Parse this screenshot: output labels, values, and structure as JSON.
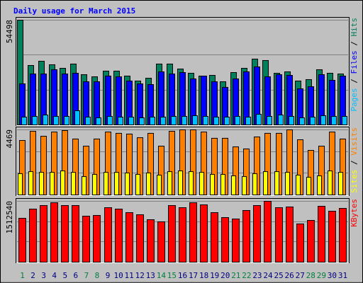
{
  "title": "Daily usage for March 2015",
  "categories": [
    "1",
    "2",
    "3",
    "4",
    "5",
    "6",
    "7",
    "8",
    "9",
    "10",
    "11",
    "12",
    "13",
    "14",
    "15",
    "16",
    "17",
    "18",
    "19",
    "20",
    "21",
    "22",
    "23",
    "24",
    "25",
    "26",
    "27",
    "28",
    "29",
    "30",
    "31"
  ],
  "category_colors": [
    "#008040",
    "#000080",
    "#000080",
    "#000080",
    "#000080",
    "#000080",
    "#008040",
    "#008040",
    "#000080",
    "#000080",
    "#000080",
    "#000080",
    "#000080",
    "#008040",
    "#008040",
    "#000080",
    "#000080",
    "#000080",
    "#000080",
    "#000080",
    "#008040",
    "#008040",
    "#000080",
    "#000080",
    "#000080",
    "#000080",
    "#000080",
    "#008040",
    "#008040",
    "#000080",
    "#000080"
  ],
  "legend_separator": " / ",
  "chart_data": [
    {
      "type": "bar",
      "ylim": [
        0,
        54498
      ],
      "yticks": [
        54498
      ],
      "grid": true,
      "series": [
        {
          "name": "Hits",
          "color": "#00805c",
          "values": [
            54498,
            30930,
            33140,
            31300,
            29460,
            31670,
            26140,
            25040,
            27990,
            27990,
            25410,
            22830,
            24300,
            31670,
            31670,
            29090,
            26880,
            25410,
            25780,
            22460,
            27250,
            29460,
            34250,
            33510,
            26880,
            27620,
            22830,
            23570,
            28720,
            26880,
            26510
          ]
        },
        {
          "name": "Files",
          "color": "#0000ff",
          "values": [
            21360,
            26510,
            26510,
            28720,
            26510,
            26880,
            22460,
            22460,
            25410,
            25040,
            22830,
            21360,
            20990,
            27620,
            26510,
            27250,
            23930,
            25410,
            22460,
            19520,
            23930,
            27620,
            30190,
            25040,
            26140,
            25780,
            18780,
            19880,
            26140,
            23200,
            25410
          ]
        },
        {
          "name": "Pages",
          "color": "#00c0ff",
          "values": [
            4050,
            4420,
            5150,
            4420,
            4420,
            7360,
            4050,
            3680,
            4420,
            4050,
            4050,
            3680,
            4050,
            4050,
            4420,
            4420,
            4790,
            4420,
            4050,
            4050,
            4420,
            4050,
            5520,
            4420,
            5150,
            4420,
            3680,
            4050,
            4790,
            4420,
            4420
          ]
        }
      ]
    },
    {
      "type": "bar",
      "ylim": [
        0,
        4469
      ],
      "yticks": [
        4469
      ],
      "grid": true,
      "series": [
        {
          "name": "Visits",
          "color": "#ff8000",
          "values": [
            3740,
            4370,
            4030,
            4320,
            4420,
            3840,
            3350,
            3840,
            4320,
            4230,
            4180,
            3930,
            4230,
            3350,
            4370,
            4469,
            4469,
            4320,
            3890,
            3890,
            3300,
            3160,
            3980,
            4230,
            4230,
            4469,
            3790,
            3060,
            3350,
            4320,
            3840
          ]
        },
        {
          "name": "Sites",
          "color": "#ffff00",
          "values": [
            1460,
            1600,
            1550,
            1550,
            1650,
            1550,
            1260,
            1410,
            1550,
            1550,
            1510,
            1410,
            1510,
            1360,
            1600,
            1650,
            1600,
            1550,
            1410,
            1410,
            1310,
            1260,
            1460,
            1600,
            1600,
            1550,
            1360,
            1210,
            1310,
            1650,
            1550
          ]
        }
      ]
    },
    {
      "type": "bar",
      "ylim": [
        0,
        1512540
      ],
      "yticks": [
        1512540
      ],
      "grid": true,
      "series": [
        {
          "name": "KBytes",
          "color": "#ff0000",
          "values": [
            1090400,
            1319000,
            1407000,
            1477000,
            1407000,
            1407000,
            1143000,
            1161000,
            1354000,
            1319000,
            1231000,
            1178000,
            1055000,
            1003000,
            1407000,
            1354000,
            1477000,
            1424000,
            1231000,
            1108000,
            1073000,
            1284000,
            1407000,
            1512540,
            1354000,
            1372000,
            950000,
            1037000,
            1389000,
            1266000,
            1336000
          ]
        }
      ]
    }
  ]
}
